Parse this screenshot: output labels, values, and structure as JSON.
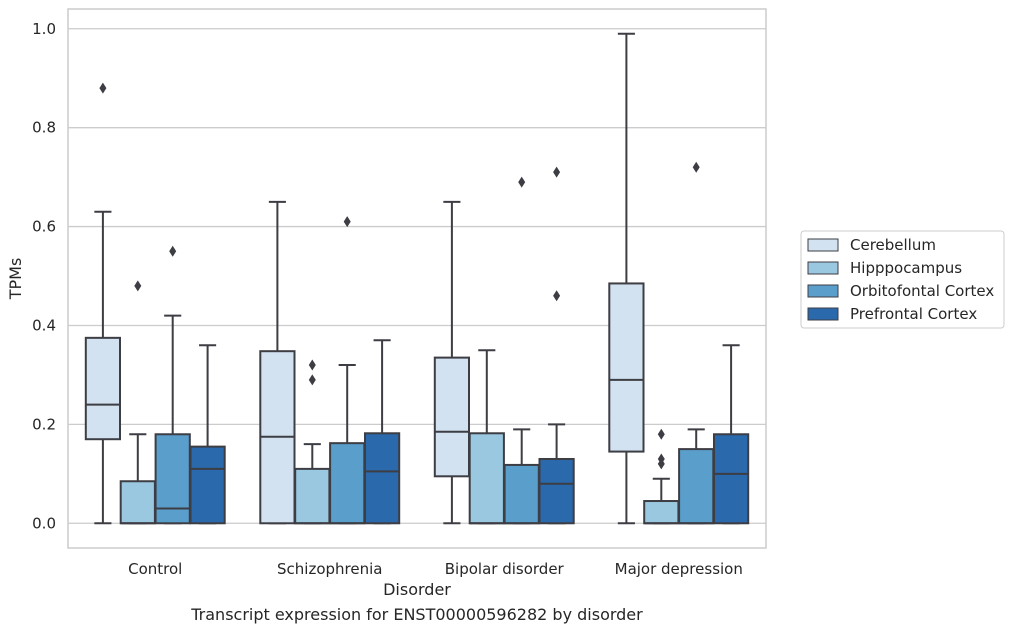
{
  "caption": "Transcript expression for ENST00000596282 by disorder",
  "chart_data": {
    "type": "box",
    "xlabel": "Disorder",
    "ylabel": "TPMs",
    "ylim": [
      -0.05,
      1.04
    ],
    "yticks": [
      "0.0",
      "0.2",
      "0.4",
      "0.6",
      "0.8",
      "1.0"
    ],
    "grid": "horizontal",
    "legend_position": "right",
    "categories": [
      "Control",
      "Schizophrenia",
      "Bipolar disorder",
      "Major depression"
    ],
    "series": [
      {
        "name": "Cerebellum",
        "color": "#d2e2f1",
        "boxes": [
          {
            "whisker_low": 0.0,
            "q1": 0.17,
            "median": 0.24,
            "q3": 0.375,
            "whisker_high": 0.63,
            "outliers": [
              0.88
            ]
          },
          {
            "whisker_low": 0.0,
            "q1": 0.0,
            "median": 0.175,
            "q3": 0.348,
            "whisker_high": 0.65,
            "outliers": []
          },
          {
            "whisker_low": 0.0,
            "q1": 0.095,
            "median": 0.185,
            "q3": 0.335,
            "whisker_high": 0.65,
            "outliers": []
          },
          {
            "whisker_low": 0.0,
            "q1": 0.145,
            "median": 0.29,
            "q3": 0.485,
            "whisker_high": 0.99,
            "outliers": []
          }
        ]
      },
      {
        "name": "Hipppocampus",
        "color": "#9ac8e0",
        "boxes": [
          {
            "whisker_low": 0.0,
            "q1": 0.0,
            "median": 0.0,
            "q3": 0.085,
            "whisker_high": 0.18,
            "outliers": [
              0.48
            ]
          },
          {
            "whisker_low": 0.0,
            "q1": 0.0,
            "median": 0.0,
            "q3": 0.11,
            "whisker_high": 0.16,
            "outliers": [
              0.29,
              0.32
            ]
          },
          {
            "whisker_low": 0.0,
            "q1": 0.0,
            "median": 0.0,
            "q3": 0.182,
            "whisker_high": 0.35,
            "outliers": []
          },
          {
            "whisker_low": 0.0,
            "q1": 0.0,
            "median": 0.0,
            "q3": 0.045,
            "whisker_high": 0.09,
            "outliers": [
              0.12,
              0.13,
              0.18
            ]
          }
        ]
      },
      {
        "name": "Orbitofontal Cortex",
        "color": "#5a9ecc",
        "boxes": [
          {
            "whisker_low": 0.0,
            "q1": 0.0,
            "median": 0.03,
            "q3": 0.18,
            "whisker_high": 0.42,
            "outliers": [
              0.55
            ]
          },
          {
            "whisker_low": 0.0,
            "q1": 0.0,
            "median": 0.0,
            "q3": 0.162,
            "whisker_high": 0.32,
            "outliers": [
              0.61
            ]
          },
          {
            "whisker_low": 0.0,
            "q1": 0.0,
            "median": 0.0,
            "q3": 0.118,
            "whisker_high": 0.19,
            "outliers": [
              0.69
            ]
          },
          {
            "whisker_low": 0.0,
            "q1": 0.0,
            "median": 0.0,
            "q3": 0.15,
            "whisker_high": 0.19,
            "outliers": [
              0.72
            ]
          }
        ]
      },
      {
        "name": "Prefrontal Cortex",
        "color": "#2a69ac",
        "boxes": [
          {
            "whisker_low": 0.0,
            "q1": 0.0,
            "median": 0.11,
            "q3": 0.155,
            "whisker_high": 0.36,
            "outliers": []
          },
          {
            "whisker_low": 0.0,
            "q1": 0.0,
            "median": 0.105,
            "q3": 0.182,
            "whisker_high": 0.37,
            "outliers": []
          },
          {
            "whisker_low": 0.0,
            "q1": 0.0,
            "median": 0.08,
            "q3": 0.13,
            "whisker_high": 0.2,
            "outliers": [
              0.46,
              0.71
            ]
          },
          {
            "whisker_low": 0.0,
            "q1": 0.0,
            "median": 0.1,
            "q3": 0.18,
            "whisker_high": 0.36,
            "outliers": []
          }
        ]
      }
    ]
  }
}
